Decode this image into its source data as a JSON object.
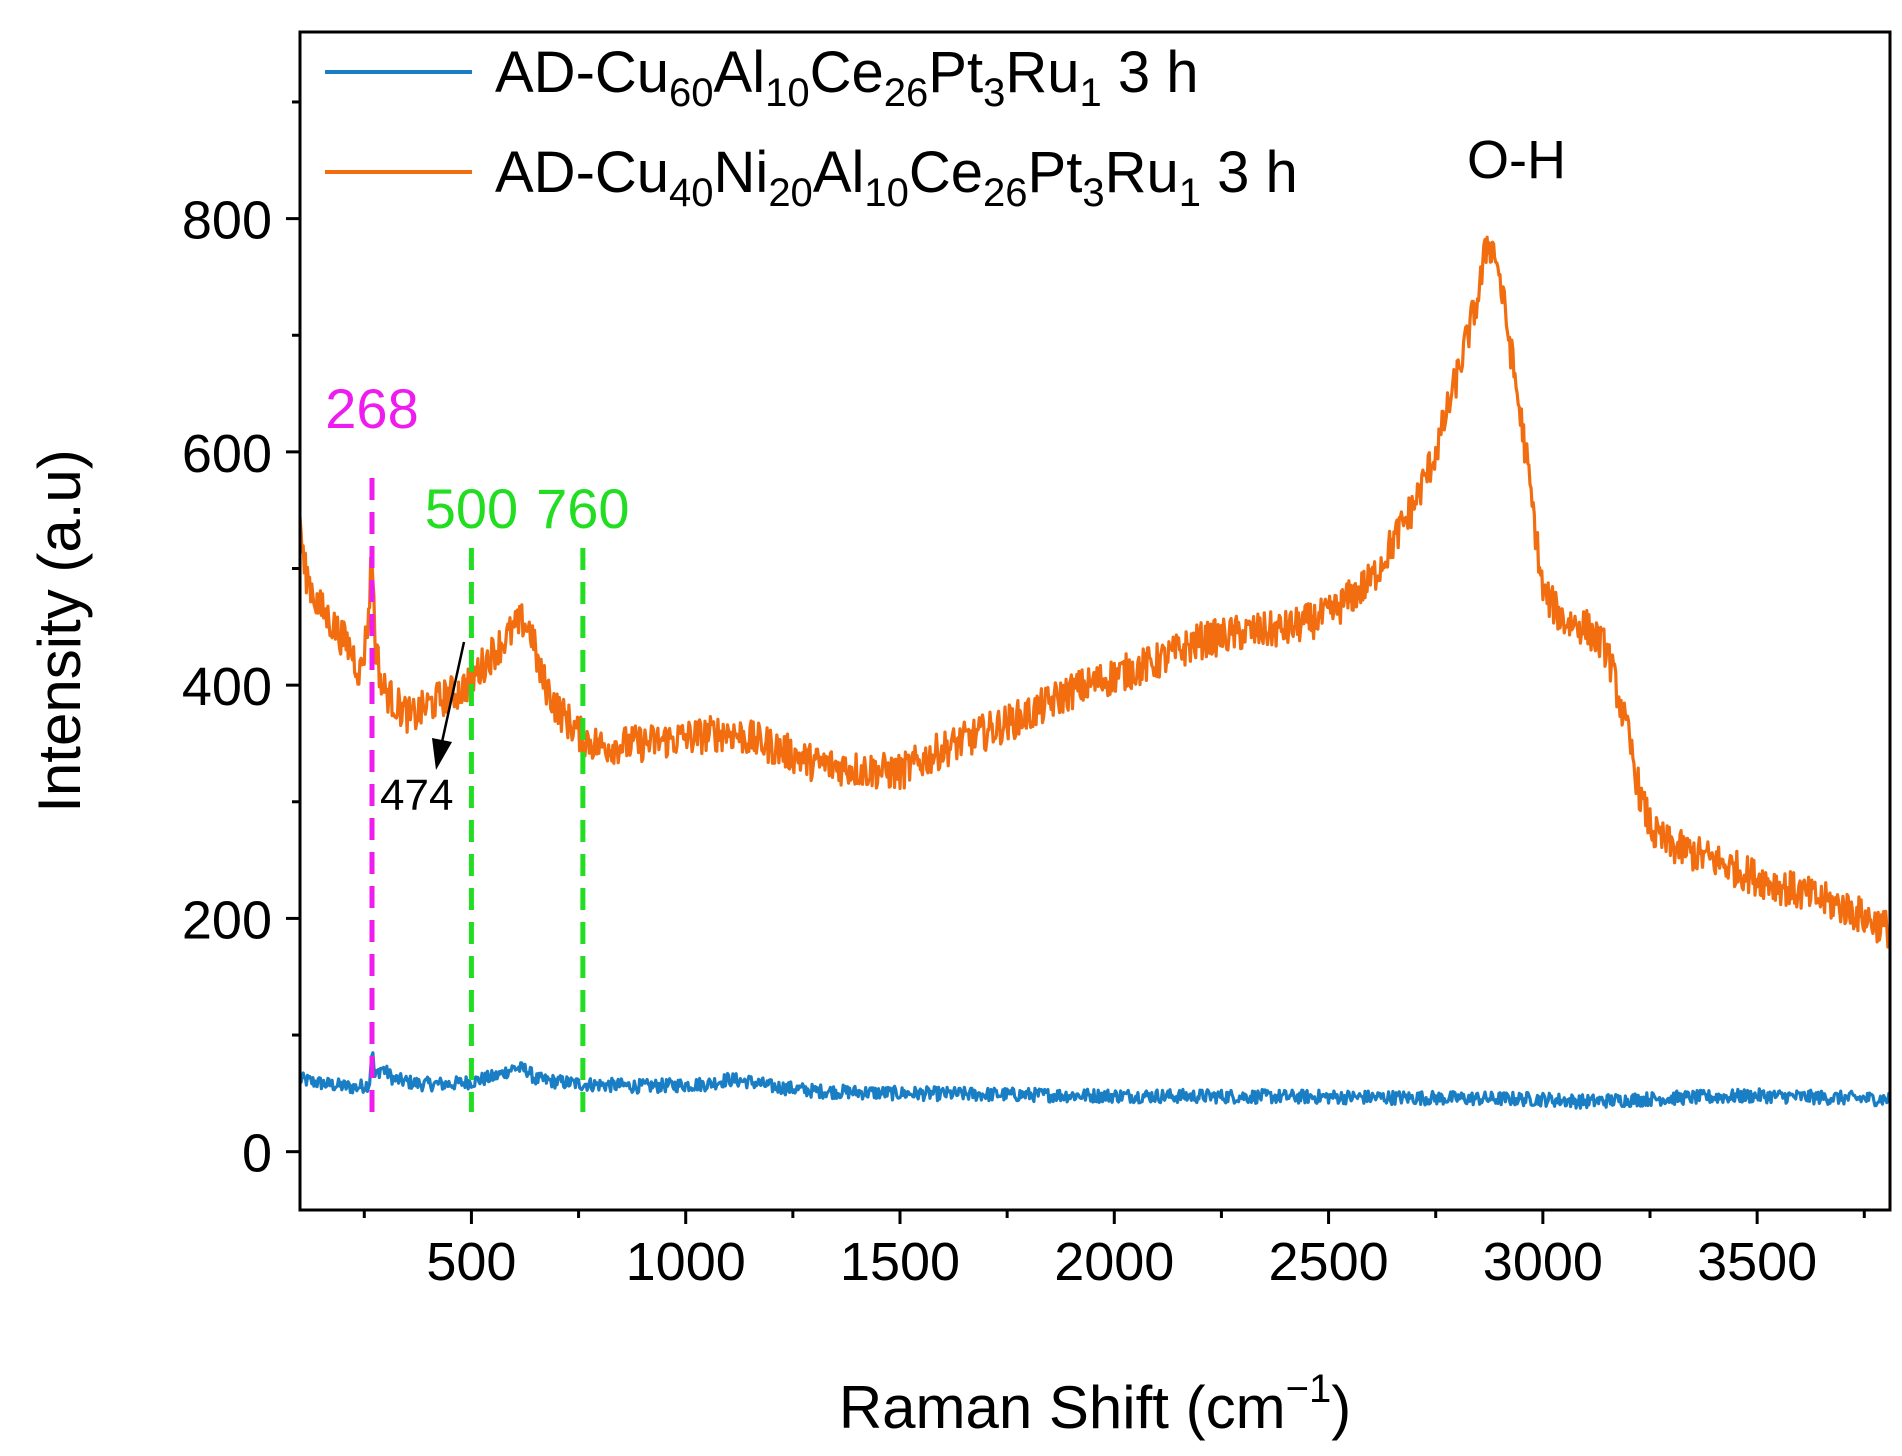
{
  "chart_data": {
    "type": "line",
    "title": "",
    "xlabel": "Raman Shift (cm",
    "xlabel_sup": "−1",
    "xlabel_end": ")",
    "ylabel": "Intensity (a.u)",
    "xlim": [
      100,
      3810
    ],
    "ylim": [
      -50,
      960
    ],
    "xticks": [
      500,
      1000,
      1500,
      2000,
      2500,
      3000,
      3500
    ],
    "xtick_labels": [
      "500",
      "1000",
      "1500",
      "2000",
      "2500",
      "3000",
      "3500"
    ],
    "yticks": [
      0,
      200,
      400,
      600,
      800
    ],
    "ytick_labels": [
      "0",
      "200",
      "400",
      "600",
      "800"
    ],
    "legend_position": "top-left",
    "series": [
      {
        "name": "AD-Cu60Al10Ce26Pt3Ru1 3 h",
        "legend_parts": [
          {
            "t": "AD-Cu",
            "sub": false
          },
          {
            "t": "60",
            "sub": true
          },
          {
            "t": "Al",
            "sub": false
          },
          {
            "t": "10",
            "sub": true
          },
          {
            "t": "Ce",
            "sub": false
          },
          {
            "t": "26",
            "sub": true
          },
          {
            "t": "Pt",
            "sub": false
          },
          {
            "t": "3",
            "sub": true
          },
          {
            "t": "Ru",
            "sub": false
          },
          {
            "t": "1",
            "sub": true
          },
          {
            "t": " 3 h",
            "sub": false
          }
        ],
        "color": "#1a7ec4",
        "noise": 6,
        "x": [
          100,
          160,
          230,
          262,
          268,
          275,
          290,
          320,
          380,
          450,
          500,
          560,
          600,
          630,
          650,
          700,
          760,
          900,
          1050,
          1100,
          1150,
          1200,
          1300,
          1500,
          2000,
          2500,
          3000,
          3100,
          3300,
          3500,
          3810
        ],
        "values": [
          62,
          58,
          55,
          58,
          88,
          64,
          72,
          62,
          58,
          58,
          60,
          65,
          72,
          70,
          62,
          60,
          58,
          56,
          58,
          62,
          60,
          56,
          52,
          50,
          48,
          47,
          45,
          43,
          46,
          48,
          45
        ]
      },
      {
        "name": "AD-Cu40Ni20Al10Ce26Pt3Ru1 3 h",
        "legend_parts": [
          {
            "t": "AD-Cu",
            "sub": false
          },
          {
            "t": "40",
            "sub": true
          },
          {
            "t": "Ni",
            "sub": false
          },
          {
            "t": "20",
            "sub": true
          },
          {
            "t": "Al",
            "sub": false
          },
          {
            "t": "10",
            "sub": true
          },
          {
            "t": "Ce",
            "sub": false
          },
          {
            "t": "26",
            "sub": true
          },
          {
            "t": "Pt",
            "sub": false
          },
          {
            "t": "3",
            "sub": true
          },
          {
            "t": "Ru",
            "sub": false
          },
          {
            "t": "1",
            "sub": true
          },
          {
            "t": " 3 h",
            "sub": false
          }
        ],
        "color": "#f26d10",
        "noise": 16,
        "x": [
          100,
          110,
          140,
          180,
          220,
          240,
          250,
          260,
          268,
          275,
          290,
          320,
          360,
          400,
          450,
          474,
          500,
          550,
          600,
          620,
          640,
          660,
          700,
          760,
          800,
          900,
          1000,
          1100,
          1200,
          1300,
          1400,
          1500,
          1600,
          1700,
          1800,
          1900,
          2000,
          2100,
          2200,
          2300,
          2400,
          2500,
          2600,
          2700,
          2750,
          2800,
          2850,
          2870,
          2890,
          2920,
          2960,
          3000,
          3050,
          3100,
          3150,
          3200,
          3230,
          3260,
          3300,
          3400,
          3500,
          3600,
          3700,
          3810
        ],
        "values": [
          540,
          500,
          470,
          450,
          430,
          410,
          430,
          460,
          520,
          440,
          400,
          385,
          372,
          383,
          392,
          395,
          405,
          428,
          448,
          455,
          445,
          410,
          380,
          355,
          348,
          350,
          355,
          360,
          348,
          333,
          328,
          325,
          345,
          360,
          375,
          395,
          408,
          420,
          438,
          445,
          448,
          460,
          490,
          555,
          600,
          665,
          735,
          780,
          770,
          700,
          600,
          480,
          455,
          450,
          430,
          355,
          300,
          272,
          262,
          250,
          235,
          222,
          210,
          190
        ]
      }
    ],
    "reference_lines": [
      {
        "x": 268,
        "label": "268",
        "color": "#ee1cee"
      },
      {
        "x": 500,
        "label": "500",
        "color": "#22dd22"
      },
      {
        "x": 760,
        "label": "760",
        "color": "#22dd22"
      }
    ],
    "annotations": [
      {
        "text": "474",
        "x": 474,
        "y": 395,
        "arrow": true
      },
      {
        "text": "O-H",
        "x": 2870,
        "y": 785,
        "arrow": false
      }
    ]
  }
}
